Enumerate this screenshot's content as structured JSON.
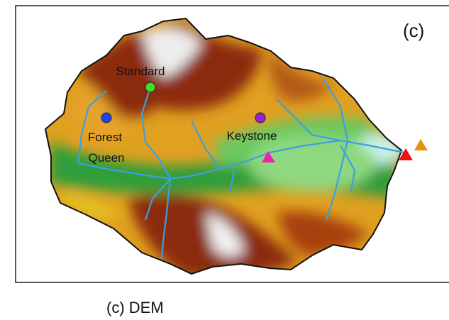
{
  "panel_label": "(c)",
  "sites": [
    {
      "label_lines": [
        "Standard"
      ]
    },
    {
      "label_lines": [
        "Forest",
        "Queen"
      ]
    },
    {
      "label_lines": [
        "Keystone"
      ]
    }
  ],
  "caption": "(c) DEM"
}
